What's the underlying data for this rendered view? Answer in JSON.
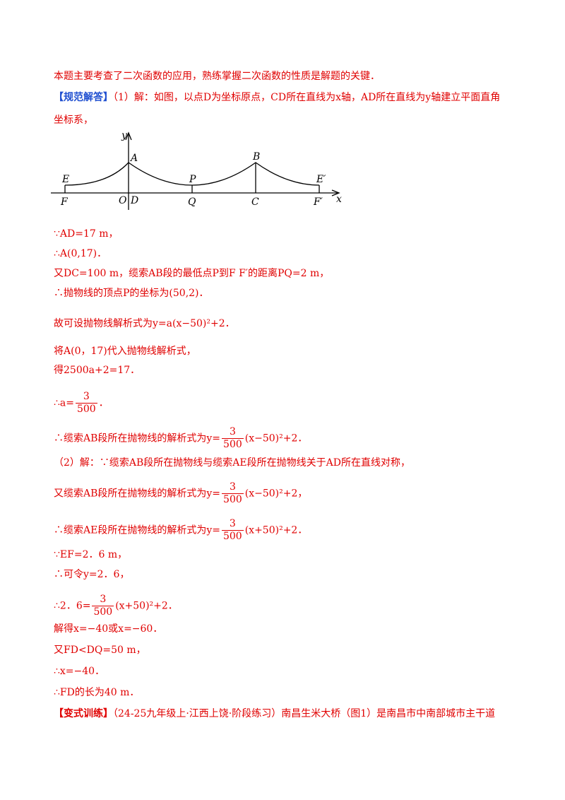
{
  "lines": [
    {
      "parts": [
        "本题主要考查了二次函数的应用，熟练掌握二次函数的性质是解题的关键．"
      ]
    },
    {
      "parts": [
        "【规范解答】",
        "（1）解：如图，以点D为坐标原点，CD所在直线为x轴，AD所在直线为y轴建立平面直角"
      ]
    },
    {
      "parts": [
        "坐标系，"
      ]
    },
    {
      "parts": [
        "∵AD=17 m，"
      ]
    },
    {
      "parts": [
        "∴A(0,17)．"
      ]
    },
    {
      "parts": [
        "又DC=100 m，缆索AB段的最低点P到F F′的距离PQ=2 m，"
      ]
    },
    {
      "parts": [
        "∴抛物线的顶点P的坐标为(50,2)．"
      ]
    },
    {
      "parts": [
        "故可设抛物线解析式为y=a(x−50)²+2．"
      ]
    },
    {
      "parts": [
        "将A(0，17)代入抛物线解析式，"
      ]
    },
    {
      "parts": [
        "得2500a+2=17．"
      ]
    },
    {
      "parts": [
        "∴a=",
        {
          "num": "3",
          "den": "500"
        },
        "．"
      ]
    },
    {
      "parts": [
        "∴缆索AB段所在抛物线的解析式为y=",
        {
          "num": "3",
          "den": "500"
        },
        "(x−50)²+2．"
      ]
    },
    {
      "parts": [
        "（2）解：∵缆索AB段所在抛物线与缆索AE段所在抛物线关于AD所在直线对称，"
      ]
    },
    {
      "parts": [
        "又缆索AB段所在抛物线的解析式为y=",
        {
          "num": "3",
          "den": "500"
        },
        "(x−50)²+2，"
      ]
    },
    {
      "parts": [
        "∴缆索AE段所在抛物线的解析式为y=",
        {
          "num": "3",
          "den": "500"
        },
        "(x+50)²+2．"
      ]
    },
    {
      "parts": [
        "∵EF=2．6 m，"
      ]
    },
    {
      "parts": [
        "∴可令y=2．6，"
      ]
    },
    {
      "parts": [
        "∴2．6=",
        {
          "num": "3",
          "den": "500"
        },
        "(x+50)²+2．"
      ]
    },
    {
      "parts": [
        "解得x=−40或x=−60．"
      ]
    },
    {
      "parts": [
        "又FD<DQ=50 m，"
      ]
    },
    {
      "parts": [
        "∴x=−40．"
      ]
    },
    {
      "parts": [
        "∴FD的长为40 m．"
      ]
    },
    {
      "parts": [
        "【变式训练】",
        "（24-25九年级上·江西上饶·阶段练习）南昌生米大桥（图1）是南昌市中南部城市主干道"
      ]
    }
  ],
  "diagram": {
    "labels": [
      "y",
      "A",
      "B",
      "E",
      "P",
      "E′",
      "F",
      "O",
      "D",
      "Q",
      "C",
      "F′",
      "x"
    ]
  }
}
